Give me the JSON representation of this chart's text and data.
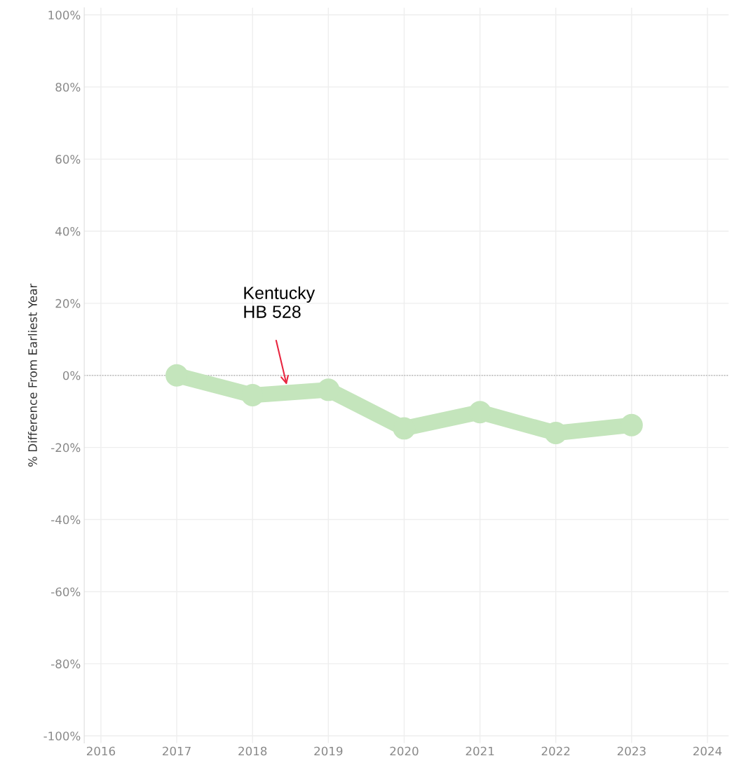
{
  "chart_data": {
    "type": "line",
    "ylabel": "% Difference From Earliest Year",
    "x": [
      2017,
      2018,
      2019,
      2020,
      2021,
      2022,
      2023
    ],
    "series": [
      {
        "color": "#c4e5bc",
        "values": [
          0,
          -5.5,
          -4,
          -14.7,
          -10.2,
          -16,
          -13.8
        ]
      }
    ],
    "xlim": [
      2015.78,
      2024.28
    ],
    "xticks": [
      2016,
      2017,
      2018,
      2019,
      2020,
      2021,
      2022,
      2023,
      2024
    ],
    "ylim": [
      -102,
      102
    ],
    "yticks": [
      {
        "value": -100,
        "label": "-100%"
      },
      {
        "value": -80,
        "label": "-80%"
      },
      {
        "value": -60,
        "label": "-60%"
      },
      {
        "value": -40,
        "label": "-40%"
      },
      {
        "value": -20,
        "label": "-20%"
      },
      {
        "value": 0,
        "label": "0%"
      },
      {
        "value": 20,
        "label": "20%"
      },
      {
        "value": 40,
        "label": "40%"
      },
      {
        "value": 60,
        "label": "60%"
      },
      {
        "value": 80,
        "label": "80%"
      },
      {
        "value": 100,
        "label": "100%"
      }
    ],
    "ref_lines": [
      {
        "axis": "y",
        "value": 0,
        "color": "#b0b0b0",
        "line_style": "dotted"
      }
    ],
    "annotations": [
      {
        "text": "Kentucky\nHB 528",
        "x": 2018.45,
        "y": -2.6
      }
    ],
    "grid": true,
    "marker": "circle",
    "line_style": "solid"
  }
}
